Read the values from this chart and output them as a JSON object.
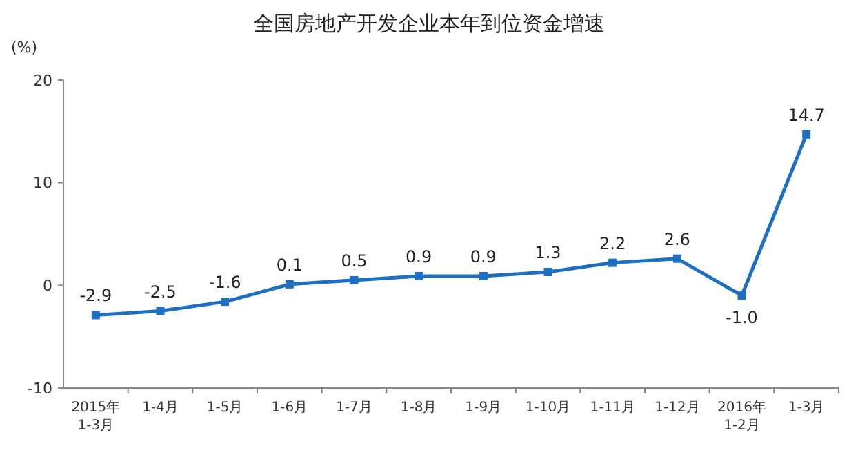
{
  "chart_data": {
    "type": "line",
    "title": "全国房地产开发企业本年到位资金增速",
    "ylabel": "(%)",
    "categories": [
      "2015年\n1-3月",
      "1-4月",
      "1-5月",
      "1-6月",
      "1-7月",
      "1-8月",
      "1-9月",
      "1-10月",
      "1-11月",
      "1-12月",
      "2016年\n1-2月",
      "1-3月"
    ],
    "series": [
      {
        "color": "#1f6fc0",
        "values": [
          -2.9,
          -2.5,
          -1.6,
          0.1,
          0.5,
          0.9,
          0.9,
          1.3,
          2.2,
          2.6,
          -1.0,
          14.7
        ]
      }
    ],
    "value_labels": [
      "-2.9",
      "-2.5",
      "-1.6",
      "0.1",
      "0.5",
      "0.9",
      "0.9",
      "1.3",
      "2.2",
      "2.6",
      "-1.0",
      "14.7"
    ],
    "ylim": [
      -10,
      20
    ],
    "yticks": [
      -10,
      0,
      10,
      20
    ],
    "grid": false,
    "marker": "square",
    "line_style": "solid"
  }
}
